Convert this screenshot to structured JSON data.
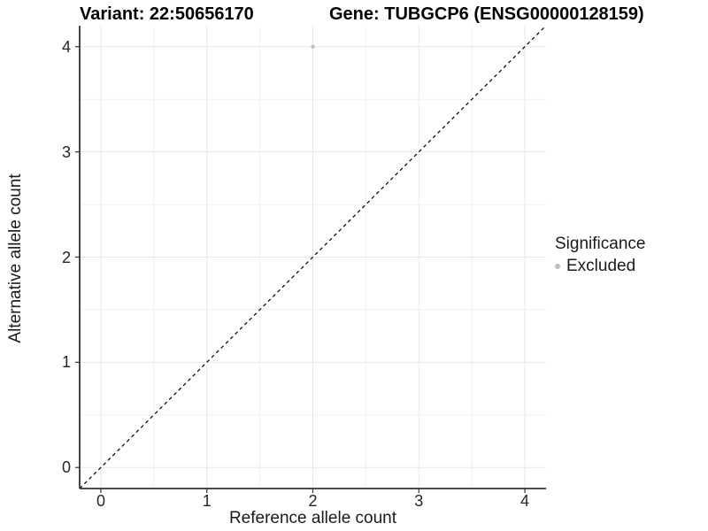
{
  "titles": {
    "variant": "Variant: 22:50656170",
    "gene": "Gene: TUBGCP6 (ENSG00000128159)"
  },
  "colors": {
    "background": "#ffffff",
    "grid_major": "#e7e7e7",
    "grid_minor": "#f0f0f0",
    "axis_line": "#333333",
    "tick_mark": "#333333",
    "identity_line": "#000000",
    "point": "#bebebe"
  },
  "chart_data": {
    "type": "scatter",
    "title_left": "Variant: 22:50656170",
    "title_right": "Gene: TUBGCP6 (ENSG00000128159)",
    "xlabel": "Reference allele count",
    "ylabel": "Alternative allele count",
    "xlim": [
      -0.2,
      4.2
    ],
    "ylim": [
      -0.2,
      4.2
    ],
    "xticks": [
      0,
      1,
      2,
      3,
      4
    ],
    "yticks": [
      0,
      1,
      2,
      3,
      4
    ],
    "xticks_minor": [
      0.5,
      1.5,
      2.5,
      3.5
    ],
    "yticks_minor": [
      0.5,
      1.5,
      2.5,
      3.5
    ],
    "grid": true,
    "identity_line": {
      "style": "dashed",
      "slope": 1,
      "intercept": 0
    },
    "series": [
      {
        "name": "Excluded",
        "color": "#bebebe",
        "points": [
          [
            2,
            4
          ]
        ]
      }
    ],
    "legend": {
      "title": "Significance",
      "position": "right",
      "items": [
        {
          "label": "Excluded",
          "color": "#bebebe"
        }
      ]
    }
  }
}
